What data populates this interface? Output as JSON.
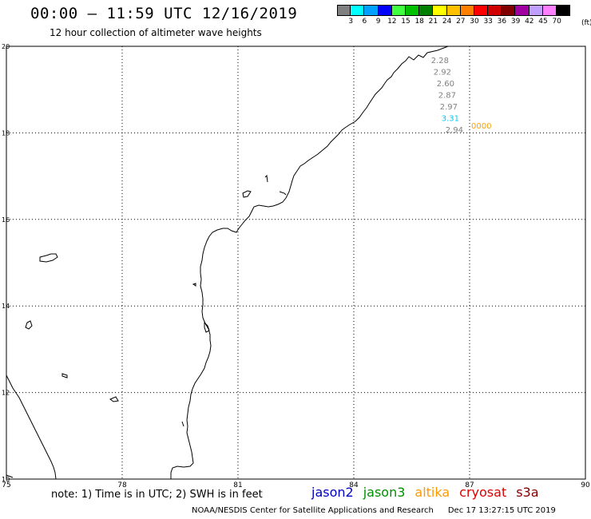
{
  "header": {
    "title": "00:00 – 11:59 UTC 12/16/2019",
    "subtitle": "12 hour collection of altimeter wave heights"
  },
  "legend": {
    "unit": "(ft)",
    "bins": [
      {
        "label": "3",
        "color": "#808080"
      },
      {
        "label": "6",
        "color": "#00ffff"
      },
      {
        "label": "9",
        "color": "#00a0ff"
      },
      {
        "label": "12",
        "color": "#0000ff"
      },
      {
        "label": "15",
        "color": "#40ff40"
      },
      {
        "label": "18",
        "color": "#00c000"
      },
      {
        "label": "21",
        "color": "#008000"
      },
      {
        "label": "24",
        "color": "#ffff00"
      },
      {
        "label": "27",
        "color": "#ffc000"
      },
      {
        "label": "30",
        "color": "#ff8000"
      },
      {
        "label": "33",
        "color": "#ff0000"
      },
      {
        "label": "36",
        "color": "#d00000"
      },
      {
        "label": "39",
        "color": "#800000"
      },
      {
        "label": "42",
        "color": "#a000a0"
      },
      {
        "label": "45",
        "color": "#c0a0ff"
      },
      {
        "label": "70",
        "color": "#ff80ff"
      },
      {
        "label": "",
        "color": "#000000"
      }
    ]
  },
  "map": {
    "lon_range": [
      75,
      90
    ],
    "lat_range": [
      10,
      20
    ],
    "x_ticks": [
      "75",
      "78",
      "81",
      "84",
      "87",
      "90"
    ],
    "y_ticks": [
      "20",
      "18",
      "16",
      "14",
      "12",
      "10"
    ],
    "grid_style": "dotted",
    "observations": [
      {
        "value": "2.28",
        "color": "#808080"
      },
      {
        "value": "2.92",
        "color": "#808080"
      },
      {
        "value": "2.60",
        "color": "#808080"
      },
      {
        "value": "2.87",
        "color": "#808080"
      },
      {
        "value": "2.97",
        "color": "#808080"
      },
      {
        "value": "3.31",
        "color": "#00c8ff"
      },
      {
        "value": "2.94",
        "color": "#808080"
      }
    ],
    "track_marker": {
      "text": "0000",
      "color": "#ffa000"
    }
  },
  "footer": {
    "note": "note: 1) Time is in UTC; 2) SWH is in feet",
    "satellites": [
      {
        "name": "jason2",
        "color": "#0000c0"
      },
      {
        "name": "jason3",
        "color": "#009000"
      },
      {
        "name": "altika",
        "color": "#ff9900"
      },
      {
        "name": "cryosat",
        "color": "#dd0000"
      },
      {
        "name": "s3a",
        "color": "#800000"
      }
    ],
    "credit": "NOAA/NESDIS Center for Satellite Applications and Research",
    "timestamp": "Dec 17 13:27:15 UTC 2019"
  }
}
